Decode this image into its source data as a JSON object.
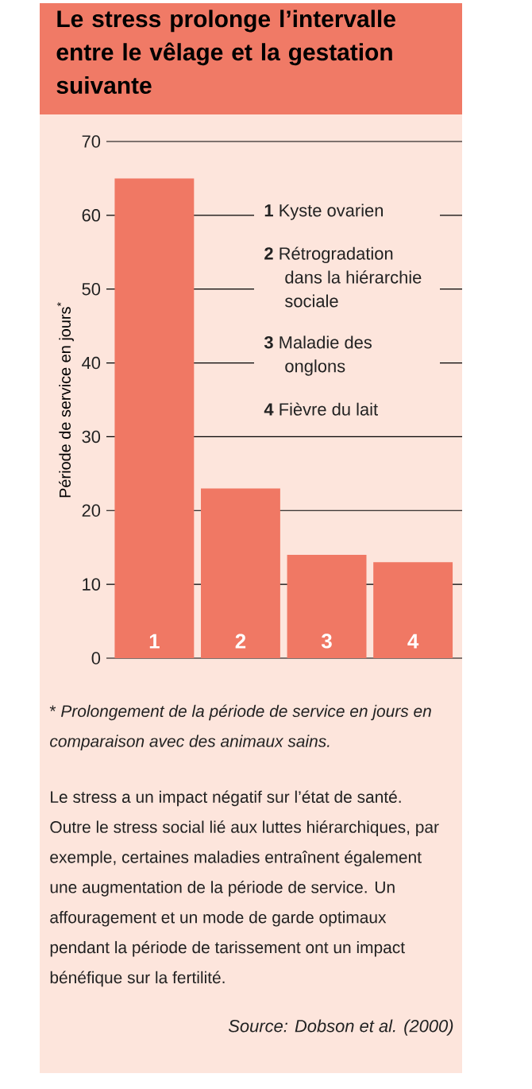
{
  "chart_data": {
    "type": "bar",
    "title": "Le stress prolonge l’intervalle entre le vêlage et la gestation suivante",
    "ylabel": "Période de service en jours$^{*}$",
    "categories": [
      "1",
      "2",
      "3",
      "4"
    ],
    "values": [
      65,
      23,
      14,
      13
    ],
    "color": "#f07864",
    "ylim": [
      0,
      70
    ],
    "yticks": [
      0,
      10,
      20,
      30,
      40,
      50,
      60,
      70
    ],
    "grid": "y",
    "annotations": [
      "**1** Kyste ovarien",
      "**2** Rétrogradation dans la hiérarchie sociale",
      "**3** Maladie des onglons",
      "**4** Fièvre du lait",
      "* *Prolongement de la période de service en jours en comparaison avec des animaux sains.*",
      "Le stress a un impact négatif sur l’état de santé. Outre le stress social lié aux luttes hiérarchiques, par exemple, certaines maladies entraînent également une augmentation de la période de service. Un affouragement et un mode de garde optimaux pendant la période de tarissement ont un impact bénéfique sur la fertilité.",
      "*Source: Dobson et al. (2000)*"
    ]
  }
}
